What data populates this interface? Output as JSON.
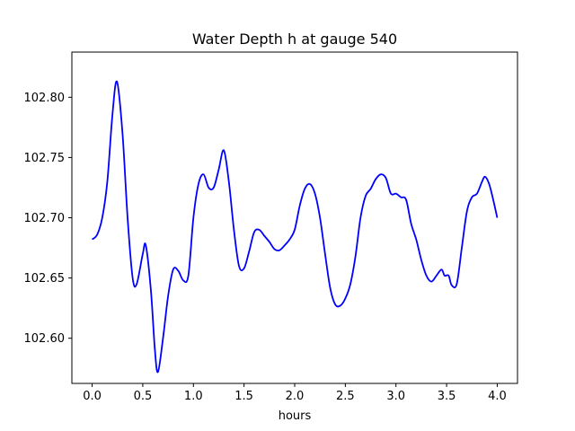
{
  "chart_data": {
    "type": "line",
    "title": "Water Depth h at gauge 540",
    "xlabel": "hours",
    "ylabel": "",
    "xlim": [
      -0.2,
      4.2
    ],
    "ylim": [
      102.5625,
      102.8375
    ],
    "xticks": [
      0.0,
      0.5,
      1.0,
      1.5,
      2.0,
      2.5,
      3.0,
      3.5,
      4.0
    ],
    "xtick_labels": [
      "0.0",
      "0.5",
      "1.0",
      "1.5",
      "2.0",
      "2.5",
      "3.0",
      "3.5",
      "4.0"
    ],
    "yticks": [
      102.6,
      102.65,
      102.7,
      102.75,
      102.8
    ],
    "ytick_labels": [
      "102.60",
      "102.65",
      "102.70",
      "102.75",
      "102.80"
    ],
    "grid": false,
    "colors": {
      "line": "#0000ff",
      "axes": "#000000",
      "background": "#ffffff"
    },
    "series": [
      {
        "x": [
          0.0,
          0.05,
          0.1,
          0.15,
          0.2,
          0.245,
          0.3,
          0.35,
          0.4,
          0.44,
          0.5,
          0.53,
          0.58,
          0.62,
          0.65,
          0.7,
          0.75,
          0.8,
          0.85,
          0.9,
          0.95,
          1.0,
          1.05,
          1.1,
          1.15,
          1.2,
          1.25,
          1.3,
          1.35,
          1.4,
          1.45,
          1.5,
          1.55,
          1.6,
          1.65,
          1.7,
          1.75,
          1.8,
          1.85,
          1.9,
          1.95,
          2.0,
          2.05,
          2.1,
          2.15,
          2.2,
          2.25,
          2.3,
          2.35,
          2.4,
          2.45,
          2.5,
          2.55,
          2.6,
          2.65,
          2.7,
          2.75,
          2.8,
          2.85,
          2.9,
          2.95,
          3.0,
          3.05,
          3.1,
          3.15,
          3.2,
          3.25,
          3.3,
          3.35,
          3.4,
          3.45,
          3.48,
          3.52,
          3.55,
          3.6,
          3.65,
          3.7,
          3.75,
          3.8,
          3.85,
          3.88,
          3.92,
          3.96,
          4.0
        ],
        "y": [
          102.682,
          102.686,
          102.7,
          102.73,
          102.785,
          102.813,
          102.77,
          102.7,
          102.65,
          102.645,
          102.67,
          102.677,
          102.64,
          102.59,
          102.572,
          102.6,
          102.635,
          102.657,
          102.656,
          102.648,
          102.652,
          102.7,
          102.728,
          102.736,
          102.725,
          102.725,
          102.74,
          102.756,
          102.73,
          102.69,
          102.66,
          102.658,
          102.672,
          102.688,
          102.69,
          102.685,
          102.68,
          102.674,
          102.673,
          102.677,
          102.682,
          102.69,
          102.71,
          102.724,
          102.728,
          102.72,
          102.7,
          102.67,
          102.642,
          102.628,
          102.627,
          102.633,
          102.645,
          102.668,
          102.7,
          102.718,
          102.724,
          102.732,
          102.736,
          102.733,
          102.72,
          102.72,
          102.717,
          102.715,
          102.695,
          102.682,
          102.665,
          102.652,
          102.647,
          102.652,
          102.657,
          102.652,
          102.652,
          102.644,
          102.645,
          102.675,
          102.705,
          102.717,
          102.72,
          102.73,
          102.734,
          102.728,
          102.715,
          102.7
        ]
      }
    ]
  }
}
